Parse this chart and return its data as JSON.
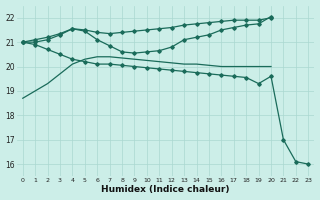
{
  "xlabel": "Humidex (Indice chaleur)",
  "bg_color": "#cceee8",
  "grid_color": "#aad8d0",
  "line_color": "#1a6b5a",
  "xlim": [
    -0.5,
    23.5
  ],
  "ylim": [
    15.5,
    22.5
  ],
  "xticks": [
    0,
    1,
    2,
    3,
    4,
    5,
    6,
    7,
    8,
    9,
    10,
    11,
    12,
    13,
    14,
    15,
    16,
    17,
    18,
    19,
    20,
    21,
    22,
    23
  ],
  "yticks": [
    16,
    17,
    18,
    19,
    20,
    21,
    22
  ],
  "series": [
    {
      "x": [
        0,
        1,
        2,
        3,
        4,
        5,
        6,
        7,
        8,
        9,
        10,
        11,
        12,
        13,
        14,
        15,
        16,
        17,
        18,
        19,
        20
      ],
      "y": [
        21.0,
        21.0,
        21.1,
        21.3,
        21.55,
        21.5,
        21.4,
        21.35,
        21.4,
        21.45,
        21.5,
        21.55,
        21.6,
        21.7,
        21.75,
        21.8,
        21.85,
        21.9,
        21.9,
        21.9,
        22.0
      ],
      "marker": true
    },
    {
      "x": [
        0,
        1,
        2,
        3,
        4,
        5,
        6,
        7,
        8,
        9,
        10,
        11,
        12,
        13,
        14,
        15,
        16,
        17,
        18,
        19,
        20
      ],
      "y": [
        21.0,
        21.1,
        21.2,
        21.35,
        21.55,
        21.45,
        21.1,
        20.85,
        20.6,
        20.55,
        20.6,
        20.65,
        20.8,
        21.1,
        21.2,
        21.3,
        21.5,
        21.6,
        21.7,
        21.75,
        22.05
      ],
      "marker": true
    },
    {
      "x": [
        0,
        1,
        2,
        3,
        4,
        5,
        6,
        7,
        8,
        9,
        10,
        11,
        12,
        13,
        14,
        15,
        16,
        17,
        18,
        19,
        20,
        21,
        22,
        23
      ],
      "y": [
        21.0,
        20.9,
        20.7,
        20.5,
        20.3,
        20.2,
        20.1,
        20.1,
        20.05,
        20.0,
        19.95,
        19.9,
        19.85,
        19.8,
        19.75,
        19.7,
        19.65,
        19.6,
        19.55,
        19.3,
        19.6,
        17.0,
        16.1,
        16.0
      ],
      "marker": true
    },
    {
      "x": [
        0,
        1,
        2,
        3,
        4,
        5,
        6,
        7,
        8,
        9,
        10,
        11,
        12,
        13,
        14,
        15,
        16,
        17,
        18,
        19,
        20
      ],
      "y": [
        18.7,
        19.0,
        19.3,
        19.7,
        20.1,
        20.3,
        20.4,
        20.4,
        20.35,
        20.3,
        20.25,
        20.2,
        20.15,
        20.1,
        20.1,
        20.05,
        20.0,
        20.0,
        20.0,
        20.0,
        20.0
      ],
      "marker": false
    }
  ]
}
